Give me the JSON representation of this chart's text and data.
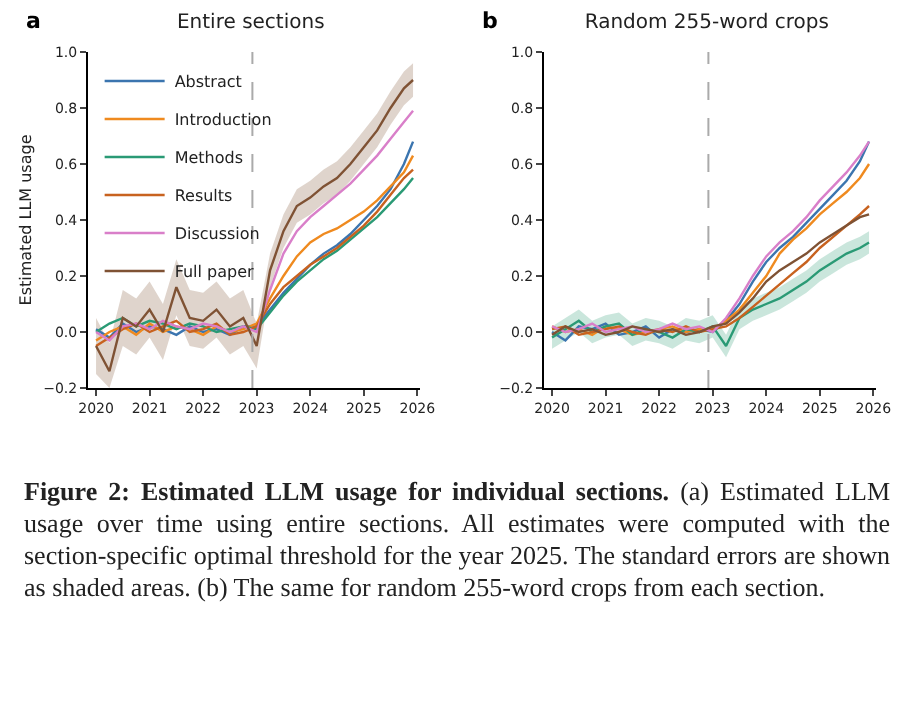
{
  "chart_data": [
    {
      "type": "line",
      "title": "Entire sections",
      "ylabel": "Estimated LLM usage",
      "legend": "top left",
      "annotations": [
        "a",
        "Figure 2: Estimated LLM usage for individual sections.",
        "(a) Estimated LLM usage over time using entire sections. All estimates were computed with the section-specific optimal threshold for the year 2025. The standard errors are shown as shaded areas. (b) The same for random 255-word crops from each section."
      ],
      "x": [
        2020,
        2020.25,
        2020.5,
        2020.75,
        2021,
        2021.25,
        2021.5,
        2021.75,
        2022,
        2022.25,
        2022.5,
        2022.75,
        2023,
        2023.25,
        2023.5,
        2023.75,
        2024,
        2024.25,
        2024.5,
        2024.75,
        2025,
        2025.25,
        2025.5,
        2025.75,
        2025.92
      ],
      "xlim": [
        2019.85,
        2026.05
      ],
      "xticks": [
        2020,
        2021,
        2022,
        2023,
        2024,
        2025,
        2026
      ],
      "ylim": [
        -0.2,
        1.0
      ],
      "yticks": [
        {
          "value": -0.2,
          "label": "−0.2"
        },
        {
          "value": 0,
          "label": "0.0"
        },
        {
          "value": 0.2,
          "label": "0.2"
        },
        {
          "value": 0.4,
          "label": "0.4"
        },
        {
          "value": 0.6,
          "label": "0.6"
        },
        {
          "value": 0.8,
          "label": "0.8"
        },
        {
          "value": 1,
          "label": "1.0"
        }
      ],
      "ref_lines": [
        {
          "axis": "x",
          "value": 2022.92,
          "color": "#aaaaaa",
          "line_style": "dashed"
        }
      ],
      "series": [
        {
          "name": "Abstract",
          "color": "#3b75af",
          "values": [
            0.01,
            -0.02,
            0.03,
            0.0,
            0.02,
            0.01,
            -0.01,
            0.02,
            0.0,
            0.01,
            -0.01,
            0.02,
            0.02,
            0.08,
            0.14,
            0.19,
            0.24,
            0.28,
            0.31,
            0.35,
            0.4,
            0.45,
            0.51,
            0.6,
            0.68
          ]
        },
        {
          "name": "Introduction",
          "color": "#ef8a1f",
          "values": [
            -0.03,
            0.0,
            0.02,
            -0.01,
            0.03,
            0.0,
            0.02,
            0.01,
            -0.01,
            0.02,
            0.0,
            0.01,
            0.03,
            0.12,
            0.2,
            0.27,
            0.32,
            0.35,
            0.37,
            0.4,
            0.43,
            0.47,
            0.52,
            0.57,
            0.63
          ]
        },
        {
          "name": "Methods",
          "color": "#2a9a75",
          "values": [
            0.0,
            0.03,
            0.05,
            0.02,
            0.04,
            0.03,
            0.01,
            0.03,
            0.02,
            0.0,
            0.01,
            0.02,
            0.01,
            0.07,
            0.13,
            0.18,
            0.22,
            0.26,
            0.29,
            0.33,
            0.37,
            0.41,
            0.46,
            0.51,
            0.55
          ]
        },
        {
          "name": "Results",
          "color": "#c8621f",
          "values": [
            -0.05,
            -0.02,
            0.01,
            0.03,
            0.0,
            0.02,
            0.04,
            0.0,
            0.01,
            0.03,
            -0.01,
            0.0,
            0.02,
            0.1,
            0.16,
            0.2,
            0.24,
            0.27,
            0.3,
            0.34,
            0.38,
            0.43,
            0.49,
            0.55,
            0.58
          ]
        },
        {
          "name": "Discussion",
          "color": "#d97fc9",
          "values": [
            0.0,
            -0.03,
            0.02,
            0.03,
            0.01,
            0.04,
            0.02,
            0.01,
            0.03,
            0.02,
            0.0,
            0.02,
            0.0,
            0.15,
            0.28,
            0.36,
            0.41,
            0.45,
            0.49,
            0.53,
            0.58,
            0.63,
            0.69,
            0.75,
            0.79
          ]
        },
        {
          "name": "Full paper",
          "color": "#7f5234",
          "values": [
            -0.05,
            -0.14,
            0.05,
            0.02,
            0.08,
            0.0,
            0.16,
            0.05,
            0.04,
            0.08,
            0.02,
            0.05,
            -0.05,
            0.22,
            0.36,
            0.45,
            0.48,
            0.52,
            0.55,
            0.6,
            0.66,
            0.72,
            0.8,
            0.87,
            0.9
          ],
          "lower": [
            -0.15,
            -0.2,
            -0.05,
            -0.08,
            -0.02,
            -0.1,
            0.06,
            -0.05,
            -0.06,
            -0.02,
            -0.08,
            -0.05,
            -0.13,
            0.16,
            0.3,
            0.39,
            0.42,
            0.46,
            0.49,
            0.54,
            0.6,
            0.66,
            0.74,
            0.81,
            0.84
          ],
          "upper": [
            0.05,
            -0.04,
            0.15,
            0.12,
            0.18,
            0.1,
            0.26,
            0.15,
            0.14,
            0.18,
            0.12,
            0.15,
            0.03,
            0.28,
            0.42,
            0.51,
            0.54,
            0.58,
            0.61,
            0.66,
            0.72,
            0.78,
            0.86,
            0.93,
            0.96
          ]
        }
      ]
    },
    {
      "type": "line",
      "title": "Random 255-word crops",
      "annotations": [
        "b"
      ],
      "x": [
        2020,
        2020.25,
        2020.5,
        2020.75,
        2021,
        2021.25,
        2021.5,
        2021.75,
        2022,
        2022.25,
        2022.5,
        2022.75,
        2023,
        2023.25,
        2023.5,
        2023.75,
        2024,
        2024.25,
        2024.5,
        2024.75,
        2025,
        2025.25,
        2025.5,
        2025.75,
        2025.92
      ],
      "xlim": [
        2019.85,
        2026.05
      ],
      "xticks": [
        2020,
        2021,
        2022,
        2023,
        2024,
        2025,
        2026
      ],
      "ylim": [
        -0.2,
        1.0
      ],
      "yticks": [
        {
          "value": -0.2,
          "label": "−0.2"
        },
        {
          "value": 0,
          "label": "0.0"
        },
        {
          "value": 0.2,
          "label": "0.2"
        },
        {
          "value": 0.4,
          "label": "0.4"
        },
        {
          "value": 0.6,
          "label": "0.6"
        },
        {
          "value": 0.8,
          "label": "0.8"
        },
        {
          "value": 1,
          "label": "1.0"
        }
      ],
      "ref_lines": [
        {
          "axis": "x",
          "value": 2022.92,
          "color": "#aaaaaa",
          "line_style": "dashed"
        }
      ],
      "series": [
        {
          "color": "#3b75af",
          "values": [
            0.0,
            -0.03,
            0.02,
            0.01,
            0.03,
            -0.01,
            0.0,
            0.02,
            -0.02,
            0.01,
            0.0,
            0.01,
            0.0,
            0.04,
            0.1,
            0.18,
            0.25,
            0.3,
            0.34,
            0.39,
            0.44,
            0.49,
            0.54,
            0.61,
            0.68
          ]
        },
        {
          "color": "#ef8a1f",
          "values": [
            0.02,
            0.0,
            0.01,
            -0.01,
            0.02,
            0.01,
            -0.01,
            0.0,
            0.01,
            0.02,
            0.0,
            0.01,
            0.01,
            0.04,
            0.08,
            0.14,
            0.2,
            0.28,
            0.33,
            0.37,
            0.42,
            0.46,
            0.5,
            0.55,
            0.6
          ]
        },
        {
          "color": "#2a9a75",
          "values": [
            -0.02,
            0.01,
            0.04,
            0.0,
            0.02,
            0.03,
            -0.01,
            0.01,
            0.0,
            -0.02,
            0.01,
            0.0,
            0.02,
            -0.05,
            0.05,
            0.08,
            0.1,
            0.12,
            0.15,
            0.18,
            0.22,
            0.25,
            0.28,
            0.3,
            0.32
          ],
          "lower": [
            -0.06,
            -0.03,
            0.0,
            -0.04,
            -0.02,
            -0.01,
            -0.05,
            -0.03,
            -0.04,
            -0.06,
            -0.03,
            -0.04,
            -0.02,
            -0.09,
            0.01,
            0.04,
            0.06,
            0.08,
            0.11,
            0.14,
            0.18,
            0.21,
            0.24,
            0.26,
            0.28
          ],
          "upper": [
            0.02,
            0.05,
            0.08,
            0.04,
            0.06,
            0.07,
            0.03,
            0.05,
            0.04,
            0.02,
            0.05,
            0.04,
            0.06,
            -0.01,
            0.09,
            0.12,
            0.14,
            0.16,
            0.19,
            0.22,
            0.26,
            0.29,
            0.32,
            0.34,
            0.36
          ]
        },
        {
          "color": "#c8621f",
          "values": [
            0.01,
            0.02,
            -0.01,
            0.0,
            0.01,
            0.02,
            0.0,
            -0.01,
            0.01,
            0.0,
            0.02,
            0.0,
            0.01,
            0.02,
            0.05,
            0.09,
            0.13,
            0.17,
            0.21,
            0.25,
            0.3,
            0.34,
            0.38,
            0.42,
            0.45
          ]
        },
        {
          "color": "#d97fc9",
          "values": [
            0.02,
            0.0,
            0.01,
            0.03,
            0.0,
            0.01,
            0.02,
            0.0,
            0.01,
            0.03,
            0.01,
            0.02,
            0.0,
            0.05,
            0.12,
            0.2,
            0.27,
            0.32,
            0.36,
            0.41,
            0.47,
            0.52,
            0.57,
            0.63,
            0.68
          ]
        },
        {
          "color": "#7f5234",
          "values": [
            -0.01,
            0.02,
            0.0,
            0.01,
            -0.01,
            0.0,
            0.02,
            0.01,
            0.0,
            0.01,
            -0.01,
            0.0,
            0.02,
            0.03,
            0.07,
            0.12,
            0.18,
            0.22,
            0.25,
            0.28,
            0.32,
            0.35,
            0.38,
            0.41,
            0.42
          ]
        }
      ]
    }
  ]
}
